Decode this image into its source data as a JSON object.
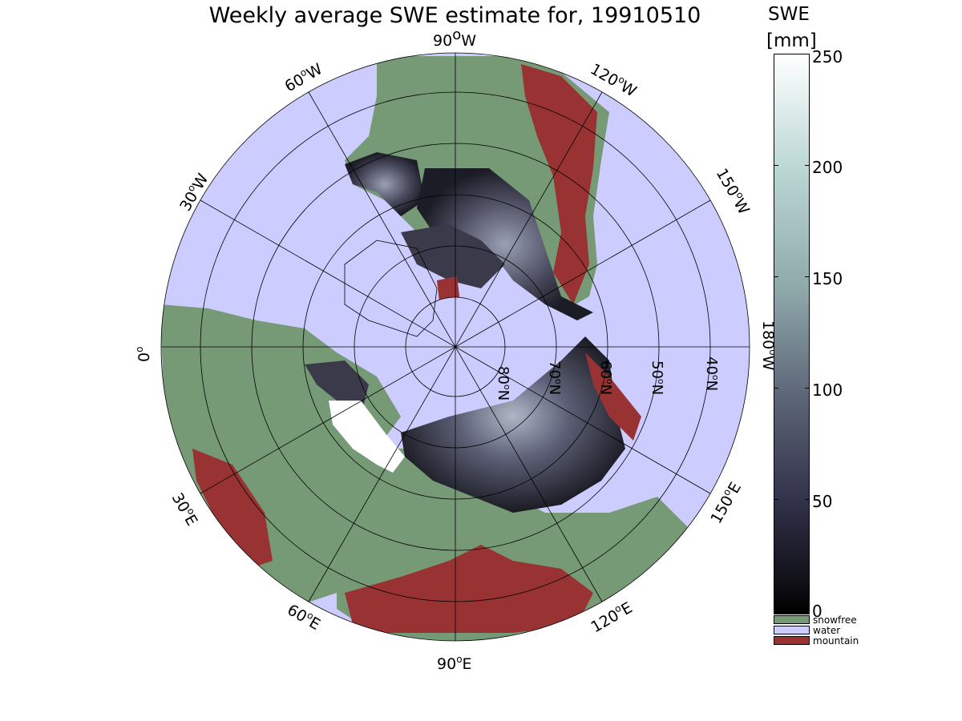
{
  "title": "Weekly average SWE estimate for, 19910510",
  "colorbar": {
    "title_line1": "SWE",
    "title_line2": "[mm]",
    "ticks": [
      "250",
      "200",
      "150",
      "100",
      "50",
      "0"
    ],
    "range": [
      0,
      250
    ]
  },
  "legend": [
    {
      "label": "snowfree",
      "color": "#759a75"
    },
    {
      "label": "water",
      "color": "#ccccff"
    },
    {
      "label": "mountain",
      "color": "#993333"
    }
  ],
  "longitude_labels": {
    "w90": {
      "base": "90",
      "sup": "o",
      "dir": "W"
    },
    "w60": {
      "base": "60",
      "sup": "o",
      "dir": "W"
    },
    "w30": {
      "base": "30",
      "sup": "o",
      "dir": "W"
    },
    "w120": {
      "base": "120",
      "sup": "o",
      "dir": "W"
    },
    "w150": {
      "base": "150",
      "sup": "o",
      "dir": "W"
    },
    "w180": {
      "base": "180",
      "sup": "o",
      "dir": "W"
    },
    "zero": {
      "base": "0",
      "sup": "o",
      "dir": ""
    },
    "e30": {
      "base": "30",
      "sup": "o",
      "dir": "E"
    },
    "e60": {
      "base": "60",
      "sup": "o",
      "dir": "E"
    },
    "e90": {
      "base": "90",
      "sup": "o",
      "dir": "E"
    },
    "e120": {
      "base": "120",
      "sup": "o",
      "dir": "E"
    },
    "e150": {
      "base": "150",
      "sup": "o",
      "dir": "E"
    }
  },
  "latitude_labels": {
    "n80": {
      "base": "80",
      "sup": "o",
      "dir": "N"
    },
    "n70": {
      "base": "70",
      "sup": "o",
      "dir": "N"
    },
    "n60": {
      "base": "60",
      "sup": "o",
      "dir": "N"
    },
    "n50": {
      "base": "50",
      "sup": "o",
      "dir": "N"
    },
    "n40": {
      "base": "40",
      "sup": "o",
      "dir": "N"
    }
  },
  "colors": {
    "water": "#ccccff",
    "snowfree": "#759a75",
    "mountain": "#993333",
    "snow_low": "#1a1a22",
    "snow_high": "#ffffff"
  }
}
